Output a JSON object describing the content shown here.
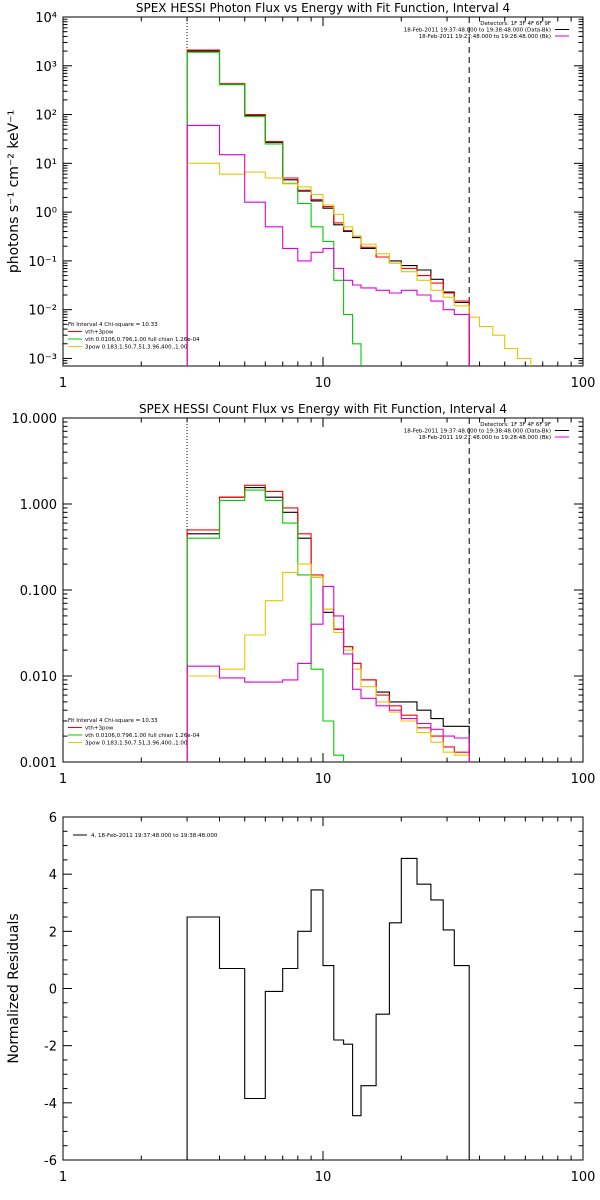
{
  "chart_data": [
    {
      "type": "line",
      "step": true,
      "title": "SPEX HESSI Photon Flux vs Energy with Fit Function, Interval 4",
      "xlabel": "",
      "ylabel": "photons s⁻¹ cm⁻² keV⁻¹",
      "xscale": "log",
      "yscale": "log",
      "xlim": [
        1,
        100
      ],
      "ylim": [
        0.0007,
        10000
      ],
      "xticks": [
        1,
        10,
        100
      ],
      "xticklabels": [
        "1",
        "10",
        "100"
      ],
      "yticks": [
        0.001,
        0.01,
        0.1,
        1,
        10,
        100,
        1000,
        10000
      ],
      "yticklabels": [
        "10⁻³",
        "10⁻²",
        "10⁻¹",
        "10⁰",
        "10¹",
        "10²",
        "10³",
        "10⁴"
      ],
      "vlines": [
        {
          "x": 3.0,
          "style": "dotted"
        },
        {
          "x": 36.5,
          "style": "dashed"
        }
      ],
      "info_top_right": [
        "Detectors: 1F 3F 4F 6F 9F",
        "18-Feb-2011 19:37:48.000 to 19:38:48.000 (Data-Bk)",
        "18-Feb-2011 19:27:48.000 to 19:28:48.000 (Bk)"
      ],
      "info_bottom_left": [
        "Fit Interval  4    Chi-square = 10.33",
        "vth+3pow",
        "vth 0.0106,0.796,1.00  full chian 1.26e-04",
        "3pow 0.183,1.50,7.51,3.96,400.,1.00"
      ],
      "edges": [
        3.0,
        4.0,
        5.0,
        6.0,
        7.0,
        8.0,
        9.0,
        10.0,
        11.0,
        12.0,
        13.0,
        14.0,
        16.0,
        18.0,
        20.0,
        23.0,
        26.0,
        29.0,
        32.0,
        36.5,
        40.0,
        45.0,
        50.0,
        56.0,
        63.0
      ],
      "series": [
        {
          "name": "black",
          "color": "#000000",
          "values": [
            2000,
            420,
            95,
            27,
            4.6,
            2.7,
            1.7,
            1.2,
            0.55,
            0.4,
            0.3,
            0.18,
            0.12,
            0.1,
            0.08,
            0.065,
            0.042,
            0.023,
            0.014
          ]
        },
        {
          "name": "vth+3pow",
          "color": "#ff0000",
          "values": [
            2100,
            430,
            100,
            28,
            5.0,
            2.8,
            1.8,
            1.3,
            0.6,
            0.42,
            0.32,
            0.19,
            0.12,
            0.09,
            0.07,
            0.05,
            0.035,
            0.022,
            0.015
          ]
        },
        {
          "name": "vth",
          "color": "#00cc00",
          "values": [
            1900,
            410,
            92,
            25,
            3.9,
            1.5,
            0.5,
            0.25,
            0.04,
            0.008,
            0.002
          ]
        },
        {
          "name": "3pow",
          "color": "#e6c800",
          "values": [
            10,
            6.0,
            6.6,
            5.0,
            3.8,
            3.3,
            2.3,
            1.4,
            0.9,
            0.5,
            0.32,
            0.22,
            0.14,
            0.09,
            0.06,
            0.04,
            0.025,
            0.018,
            0.012,
            0.007,
            0.0045,
            0.003,
            0.0016,
            0.001
          ]
        },
        {
          "name": "Bk",
          "color": "#dd00dd",
          "values": [
            60,
            15,
            1.6,
            0.5,
            0.18,
            0.1,
            0.15,
            0.18,
            0.07,
            0.04,
            0.032,
            0.028,
            0.025,
            0.022,
            0.025,
            0.02,
            0.015,
            0.01,
            0.008
          ]
        }
      ]
    },
    {
      "type": "line",
      "step": true,
      "title": "SPEX HESSI Count Flux vs Energy with Fit Function, Interval 4",
      "xlabel": "",
      "ylabel": "",
      "xscale": "log",
      "yscale": "log",
      "xlim": [
        1,
        100
      ],
      "ylim": [
        0.001,
        10
      ],
      "xticks": [
        1,
        10,
        100
      ],
      "xticklabels": [
        "1",
        "10",
        "100"
      ],
      "yticks": [
        0.001,
        0.01,
        0.1,
        1,
        10
      ],
      "yticklabels": [
        "0.001",
        "0.010",
        "0.100",
        "1.000",
        "10.000"
      ],
      "vlines": [
        {
          "x": 3.0,
          "style": "dotted"
        },
        {
          "x": 36.5,
          "style": "dashed"
        }
      ],
      "info_top_right": [
        "Detectors: 1F 3F 4F 6F 9F",
        "18-Feb-2011 19:37:48.000 to 19:38:48.000 (Data-Bk)",
        "18-Feb-2011 19:27:48.000 to 19:28:48.000 (Bk)"
      ],
      "info_bottom_left": [
        "Fit Interval  4    Chi-square = 10.33",
        "vth+3pow",
        "vth 0.0106,0.796,1.00  full chian 1.26e-04",
        "3pow 0.183,1.50,7.51,3.96,400.,1.00"
      ],
      "edges": [
        3.0,
        4.0,
        5.0,
        6.0,
        7.0,
        8.0,
        9.0,
        10.0,
        11.0,
        12.0,
        13.0,
        14.0,
        16.0,
        18.0,
        20.0,
        23.0,
        26.0,
        29.0,
        32.0,
        36.5
      ],
      "series": [
        {
          "name": "black",
          "color": "#000000",
          "values": [
            0.45,
            1.2,
            1.55,
            1.2,
            0.8,
            0.4,
            0.14,
            0.055,
            0.035,
            0.022,
            0.014,
            0.009,
            0.0065,
            0.005,
            0.005,
            0.004,
            0.0032,
            0.0026,
            0.0026
          ]
        },
        {
          "name": "vth+3pow",
          "color": "#ff0000",
          "values": [
            0.5,
            1.2,
            1.65,
            1.4,
            0.9,
            0.45,
            0.15,
            0.06,
            0.035,
            0.022,
            0.014,
            0.009,
            0.006,
            0.0045,
            0.0035,
            0.0025,
            0.002,
            0.0015,
            0.0013
          ]
        },
        {
          "name": "vth",
          "color": "#00cc00",
          "values": [
            0.4,
            1.1,
            1.45,
            1.1,
            0.6,
            0.15,
            0.012,
            0.003,
            0.0012
          ]
        },
        {
          "name": "3pow",
          "color": "#e6c800",
          "values": [
            0.01,
            0.012,
            0.03,
            0.075,
            0.16,
            0.2,
            0.14,
            0.06,
            0.032,
            0.02,
            0.012,
            0.0075,
            0.005,
            0.0038,
            0.003,
            0.0022,
            0.0017,
            0.0013,
            0.0012
          ]
        },
        {
          "name": "Bk",
          "color": "#dd00dd",
          "values": [
            0.013,
            0.0095,
            0.0085,
            0.0085,
            0.009,
            0.014,
            0.04,
            0.11,
            0.05,
            0.018,
            0.007,
            0.0055,
            0.0045,
            0.004,
            0.0032,
            0.0028,
            0.0024,
            0.002,
            0.0019
          ]
        }
      ]
    },
    {
      "type": "line",
      "step": true,
      "title": "",
      "xlabel": "",
      "ylabel": "Normalized Residuals",
      "xscale": "log",
      "yscale": "linear",
      "xlim": [
        1,
        100
      ],
      "ylim": [
        -6,
        6
      ],
      "xticks": [
        1,
        10,
        100
      ],
      "xticklabels": [
        "1",
        "10",
        "100"
      ],
      "yticks": [
        -6,
        -4,
        -2,
        0,
        2,
        4,
        6
      ],
      "yticklabels": [
        "-6",
        "-4",
        "-2",
        "0",
        "2",
        "4",
        "6"
      ],
      "legend": "4, 18-Feb-2011 19:37:48.000 to 19:38:48.000",
      "edges": [
        3.0,
        4.0,
        5.0,
        6.0,
        7.0,
        8.0,
        9.0,
        10.0,
        11.0,
        12.0,
        13.0,
        14.0,
        16.0,
        18.0,
        20.0,
        23.0,
        26.0,
        29.0,
        32.0,
        36.5
      ],
      "series": [
        {
          "name": "residuals",
          "color": "#000000",
          "values": [
            2.5,
            0.7,
            -3.85,
            -0.1,
            0.7,
            2.0,
            3.45,
            0.8,
            -1.8,
            -1.95,
            -4.45,
            -3.4,
            -0.9,
            2.3,
            4.55,
            3.65,
            3.1,
            2.05,
            0.8
          ]
        }
      ]
    }
  ]
}
